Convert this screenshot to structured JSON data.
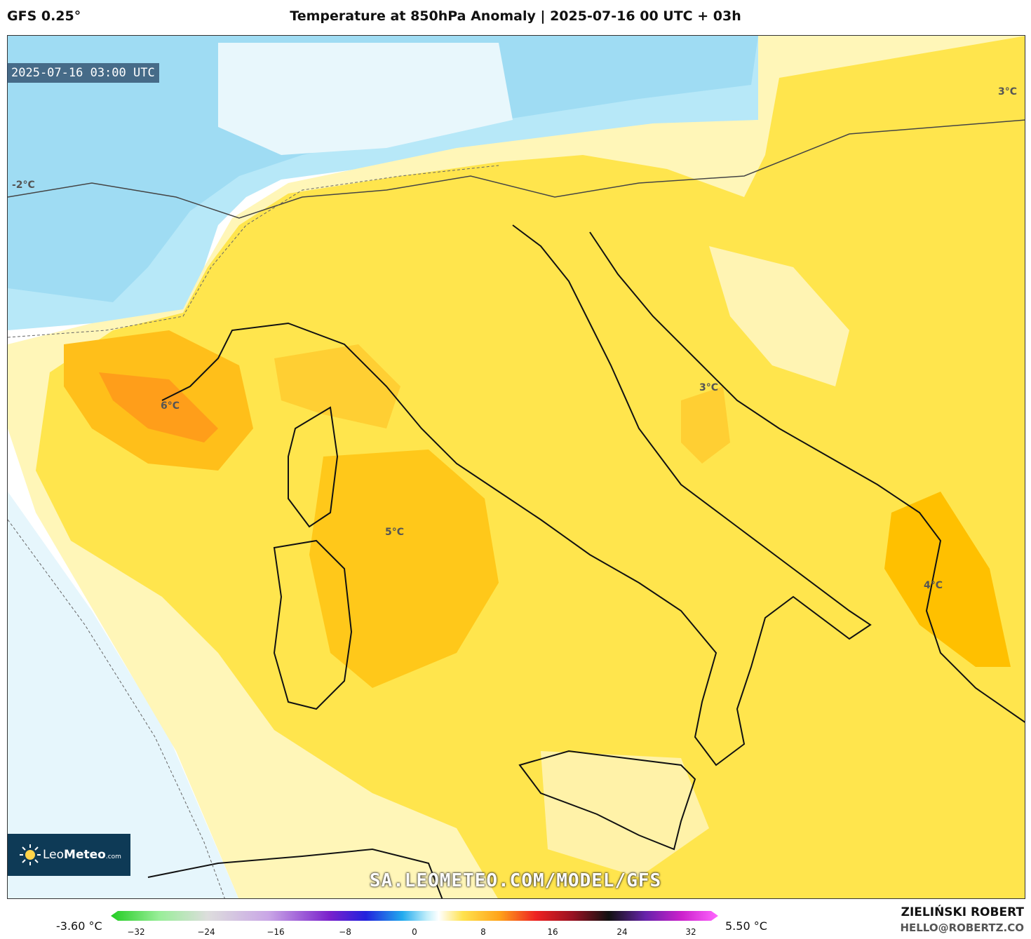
{
  "header": {
    "model": "GFS 0.25°",
    "title": "Temperature at 850hPa Anomaly | 2025-07-16 00 UTC + 03h"
  },
  "map": {
    "valid_time": "2025-07-16 03:00 UTC",
    "labels": [
      {
        "id": "west",
        "text": "-2°C"
      },
      {
        "id": "gulf-of-lion",
        "text": "6°C"
      },
      {
        "id": "tyrrhenian",
        "text": "5°C"
      },
      {
        "id": "adriatic",
        "text": "3°C"
      },
      {
        "id": "balkans-ne",
        "text": "3°C"
      },
      {
        "id": "greece",
        "text": "4°C"
      }
    ],
    "watermark": "SA.LEOMETEO.COM/MODEL/GFS",
    "colors": {
      "cold": "#a9e3f7",
      "cool": "#d9f2fb",
      "pale": "#fff4b3",
      "warm": "#ffe54d",
      "warmer": "#ffd31a",
      "hot": "#ffbf00",
      "hottest": "#ffa31a"
    }
  },
  "logo": {
    "brand_light": "Leo",
    "brand_bold": "Meteo",
    "suffix": ".com"
  },
  "colorbar": {
    "min_label": "-3.60 °C",
    "max_label": "5.50 °C",
    "ticks": [
      "−32",
      "−24",
      "−16",
      "−8",
      "0",
      "8",
      "16",
      "24",
      "32"
    ]
  },
  "credits": {
    "author": "ZIELIŃSKI ROBERT",
    "email": "HELLO@ROBERTZ.CO"
  }
}
